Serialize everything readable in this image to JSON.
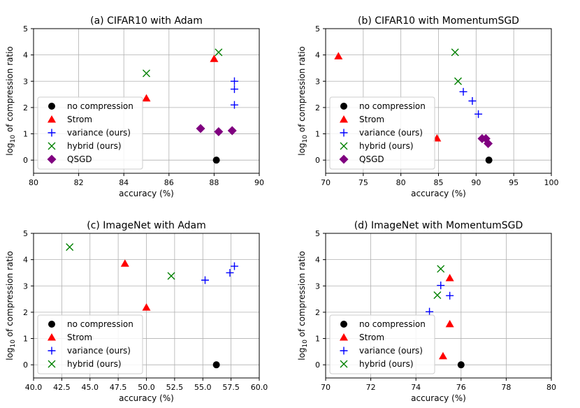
{
  "styles": {
    "no compression": {
      "marker": "circle",
      "color": "#000000"
    },
    "Strom": {
      "marker": "triangle",
      "color": "#ff0000"
    },
    "variance (ours)": {
      "marker": "plus",
      "color": "#0000ff"
    },
    "hybrid (ours)": {
      "marker": "x",
      "color": "#008000"
    },
    "QSGD": {
      "marker": "diamond",
      "color": "#800080"
    }
  },
  "chart_data": [
    {
      "type": "scatter",
      "title": "(a) CIFAR10 with Adam",
      "xlabel": "accuracy (%)",
      "ylabel": "log10 of compression ratio",
      "xlim": [
        80,
        90
      ],
      "ylim": [
        -0.5,
        5
      ],
      "xticks": [
        "80",
        "82",
        "84",
        "86",
        "88",
        "90"
      ],
      "yticks": [
        "0",
        "1",
        "2",
        "3",
        "4",
        "5"
      ],
      "grid": true,
      "legend_position": "lower-left",
      "series": [
        {
          "name": "no compression",
          "points": [
            [
              88.1,
              0.0
            ]
          ]
        },
        {
          "name": "Strom",
          "points": [
            [
              85.0,
              2.35
            ],
            [
              88.0,
              3.85
            ]
          ]
        },
        {
          "name": "variance (ours)",
          "points": [
            [
              88.9,
              2.1
            ],
            [
              88.9,
              2.7
            ],
            [
              88.9,
              3.0
            ]
          ]
        },
        {
          "name": "hybrid (ours)",
          "points": [
            [
              85.0,
              3.3
            ],
            [
              88.2,
              4.1
            ]
          ]
        },
        {
          "name": "QSGD",
          "points": [
            [
              87.4,
              1.2
            ],
            [
              88.2,
              1.08
            ],
            [
              88.8,
              1.12
            ]
          ]
        }
      ]
    },
    {
      "type": "scatter",
      "title": "(b) CIFAR10 with MomentumSGD",
      "xlabel": "accuracy (%)",
      "ylabel": "log10 of compression ratio",
      "xlim": [
        70,
        100
      ],
      "ylim": [
        -0.5,
        5
      ],
      "xticks": [
        "70",
        "75",
        "80",
        "85",
        "90",
        "95",
        "100"
      ],
      "yticks": [
        "0",
        "1",
        "2",
        "3",
        "4",
        "5"
      ],
      "grid": true,
      "legend_position": "lower-left",
      "series": [
        {
          "name": "no compression",
          "points": [
            [
              91.7,
              0.0
            ]
          ]
        },
        {
          "name": "Strom",
          "points": [
            [
              71.7,
              3.95
            ],
            [
              84.8,
              0.83
            ]
          ]
        },
        {
          "name": "variance (ours)",
          "points": [
            [
              88.3,
              2.6
            ],
            [
              89.5,
              2.25
            ],
            [
              90.3,
              1.75
            ]
          ]
        },
        {
          "name": "hybrid (ours)",
          "points": [
            [
              87.2,
              4.1
            ],
            [
              87.6,
              3.0
            ]
          ]
        },
        {
          "name": "QSGD",
          "points": [
            [
              90.8,
              0.82
            ],
            [
              91.3,
              0.82
            ],
            [
              91.6,
              0.63
            ]
          ]
        }
      ]
    },
    {
      "type": "scatter",
      "title": "(c) ImageNet with Adam",
      "xlabel": "accuracy (%)",
      "ylabel": "log10 of compression ratio",
      "xlim": [
        40,
        60
      ],
      "ylim": [
        -0.5,
        5
      ],
      "xticks": [
        "40.0",
        "42.5",
        "45.0",
        "47.5",
        "50.0",
        "52.5",
        "55.0",
        "57.5",
        "60.0"
      ],
      "yticks": [
        "0",
        "1",
        "2",
        "3",
        "4",
        "5"
      ],
      "grid": true,
      "legend_position": "lower-left",
      "series": [
        {
          "name": "no compression",
          "points": [
            [
              56.2,
              0.0
            ]
          ]
        },
        {
          "name": "Strom",
          "points": [
            [
              48.1,
              3.85
            ],
            [
              50.0,
              2.18
            ]
          ]
        },
        {
          "name": "variance (ours)",
          "points": [
            [
              55.2,
              3.22
            ],
            [
              57.4,
              3.5
            ],
            [
              57.8,
              3.75
            ]
          ]
        },
        {
          "name": "hybrid (ours)",
          "points": [
            [
              43.2,
              4.48
            ],
            [
              52.2,
              3.38
            ]
          ]
        }
      ]
    },
    {
      "type": "scatter",
      "title": "(d) ImageNet with MomentumSGD",
      "xlabel": "accuracy (%)",
      "ylabel": "log10 of compression ratio",
      "xlim": [
        70,
        80
      ],
      "ylim": [
        -0.5,
        5
      ],
      "xticks": [
        "70",
        "72",
        "74",
        "76",
        "78",
        "80"
      ],
      "yticks": [
        "0",
        "1",
        "2",
        "3",
        "4",
        "5"
      ],
      "grid": true,
      "legend_position": "lower-left",
      "series": [
        {
          "name": "no compression",
          "points": [
            [
              76.0,
              0.0
            ]
          ]
        },
        {
          "name": "Strom",
          "points": [
            [
              75.2,
              0.33
            ],
            [
              75.5,
              1.55
            ],
            [
              75.5,
              3.3
            ]
          ]
        },
        {
          "name": "variance (ours)",
          "points": [
            [
              74.6,
              2.02
            ],
            [
              75.1,
              3.02
            ],
            [
              75.5,
              2.63
            ]
          ]
        },
        {
          "name": "hybrid (ours)",
          "points": [
            [
              74.95,
              2.65
            ],
            [
              75.1,
              3.65
            ]
          ]
        }
      ]
    }
  ]
}
